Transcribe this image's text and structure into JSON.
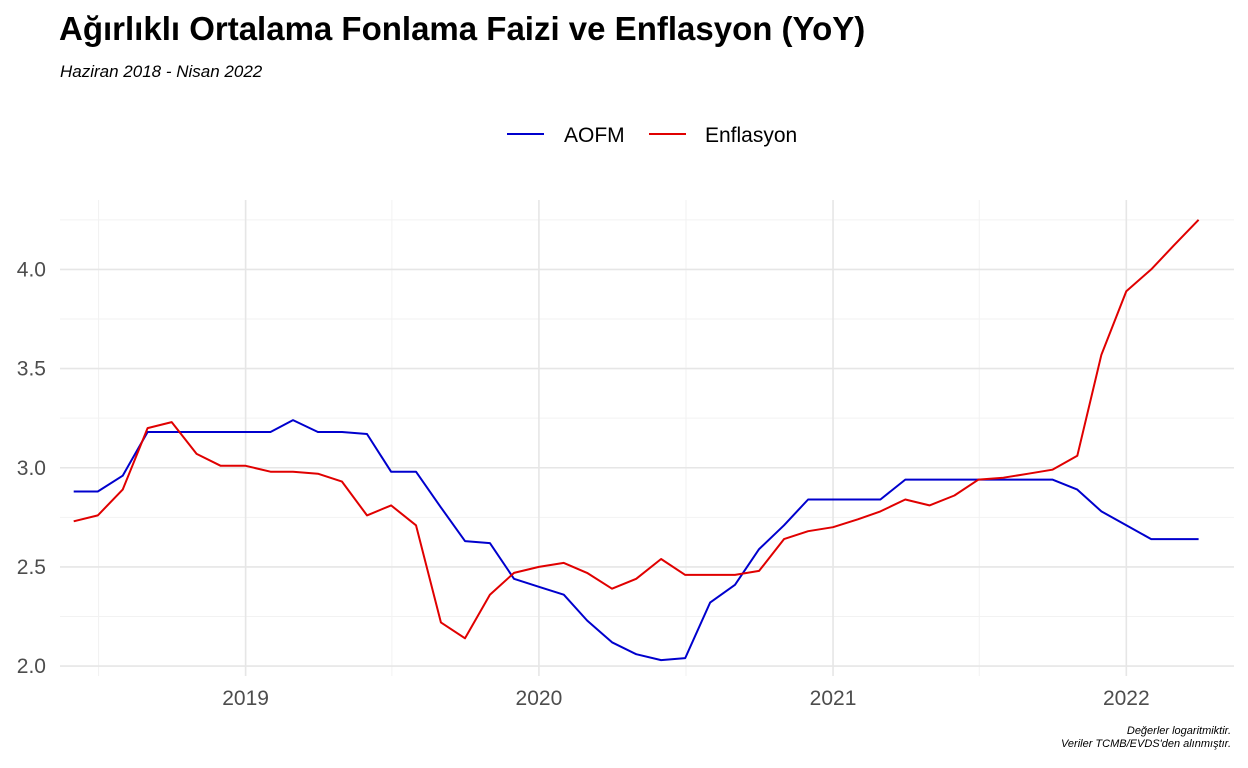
{
  "title": "Ağırlıklı Ortalama Fonlama Faizi ve Enflasyon (YoY)",
  "subtitle": "Haziran 2018 - Nisan 2022",
  "caption": {
    "line1": "Değerler logaritmiktir.",
    "line2": "Veriler TCMB/EVDS'den alınmıştır."
  },
  "chart_data": {
    "type": "line",
    "title": "Ağırlıklı Ortalama Fonlama Faizi ve Enflasyon (YoY)",
    "subtitle": "Haziran 2018 - Nisan 2022",
    "xlabel": "",
    "ylabel": "",
    "x": [
      "2018-06",
      "2018-07",
      "2018-08",
      "2018-09",
      "2018-10",
      "2018-11",
      "2018-12",
      "2019-01",
      "2019-02",
      "2019-03",
      "2019-04",
      "2019-05",
      "2019-06",
      "2019-07",
      "2019-08",
      "2019-09",
      "2019-10",
      "2019-11",
      "2019-12",
      "2020-01",
      "2020-02",
      "2020-03",
      "2020-04",
      "2020-05",
      "2020-06",
      "2020-07",
      "2020-08",
      "2020-09",
      "2020-10",
      "2020-11",
      "2020-12",
      "2021-01",
      "2021-02",
      "2021-03",
      "2021-04",
      "2021-05",
      "2021-06",
      "2021-07",
      "2021-08",
      "2021-09",
      "2021-10",
      "2021-11",
      "2021-12",
      "2022-01",
      "2022-02",
      "2022-03",
      "2022-04"
    ],
    "x_ticks": [
      "2019",
      "2020",
      "2021",
      "2022"
    ],
    "xlim": [
      "2018-05-15",
      "2022-05-15"
    ],
    "y_ticks": [
      "2.0",
      "2.5",
      "3.0",
      "3.5",
      "4.0"
    ],
    "ylim": [
      1.95,
      4.35
    ],
    "grid": true,
    "legend_position": "top",
    "series": [
      {
        "name": "AOFM",
        "color": "#0000cd",
        "values": [
          2.88,
          2.88,
          2.96,
          3.18,
          3.18,
          3.18,
          3.18,
          3.18,
          3.18,
          3.24,
          3.18,
          3.18,
          3.17,
          2.98,
          2.98,
          2.8,
          2.63,
          2.62,
          2.44,
          2.4,
          2.36,
          2.23,
          2.12,
          2.06,
          2.03,
          2.04,
          2.32,
          2.41,
          2.59,
          2.71,
          2.84,
          2.84,
          2.84,
          2.84,
          2.94,
          2.94,
          2.94,
          2.94,
          2.94,
          2.94,
          2.94,
          2.89,
          2.78,
          2.71,
          2.64,
          2.64,
          2.64
        ]
      },
      {
        "name": "Enflasyon",
        "color": "#e00000",
        "values": [
          2.73,
          2.76,
          2.89,
          3.2,
          3.23,
          3.07,
          3.01,
          3.01,
          2.98,
          2.98,
          2.97,
          2.93,
          2.76,
          2.81,
          2.71,
          2.22,
          2.14,
          2.36,
          2.47,
          2.5,
          2.52,
          2.47,
          2.39,
          2.44,
          2.54,
          2.46,
          2.46,
          2.46,
          2.48,
          2.64,
          2.68,
          2.7,
          2.74,
          2.78,
          2.84,
          2.81,
          2.86,
          2.94,
          2.95,
          2.97,
          2.99,
          3.06,
          3.57,
          3.89,
          4.0,
          4.12,
          4.25
        ]
      }
    ]
  }
}
